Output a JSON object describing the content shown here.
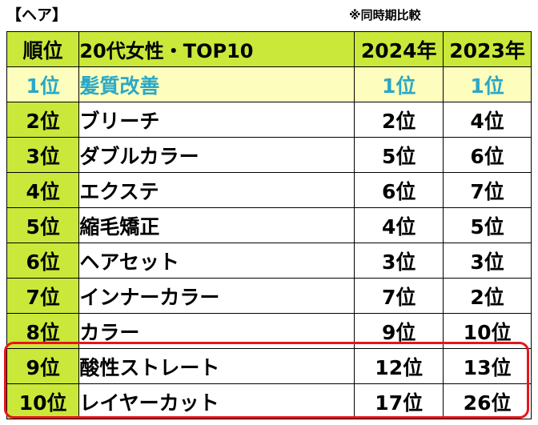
{
  "caption": "【ヘア】",
  "note": "※同時期比較",
  "header": {
    "rank": "順位",
    "item": "20代女性・TOP10",
    "year1": "2024年",
    "year2": "2023年"
  },
  "rows": [
    {
      "rank": "1位",
      "item": "髪質改善",
      "y2024": "1位",
      "y2023": "1位"
    },
    {
      "rank": "2位",
      "item": "ブリーチ",
      "y2024": "2位",
      "y2023": "4位"
    },
    {
      "rank": "3位",
      "item": "ダブルカラー",
      "y2024": "5位",
      "y2023": "6位"
    },
    {
      "rank": "4位",
      "item": "エクステ",
      "y2024": "6位",
      "y2023": "7位"
    },
    {
      "rank": "5位",
      "item": "縮毛矯正",
      "y2024": "4位",
      "y2023": "5位"
    },
    {
      "rank": "6位",
      "item": "ヘアセット",
      "y2024": "3位",
      "y2023": "3位"
    },
    {
      "rank": "7位",
      "item": "インナーカラー",
      "y2024": "7位",
      "y2023": "2位"
    },
    {
      "rank": "8位",
      "item": "カラー",
      "y2024": "9位",
      "y2023": "10位"
    },
    {
      "rank": "9位",
      "item": "酸性ストレート",
      "y2024": "12位",
      "y2023": "13位"
    },
    {
      "rank": "10位",
      "item": "レイヤーカット",
      "y2024": "17位",
      "y2023": "26位"
    }
  ],
  "colors": {
    "header_bg": "#c9e83a",
    "top_row_bg": "#fdfebd",
    "top_row_text": "#2aa8c8",
    "highlight_border": "#e8141b"
  }
}
